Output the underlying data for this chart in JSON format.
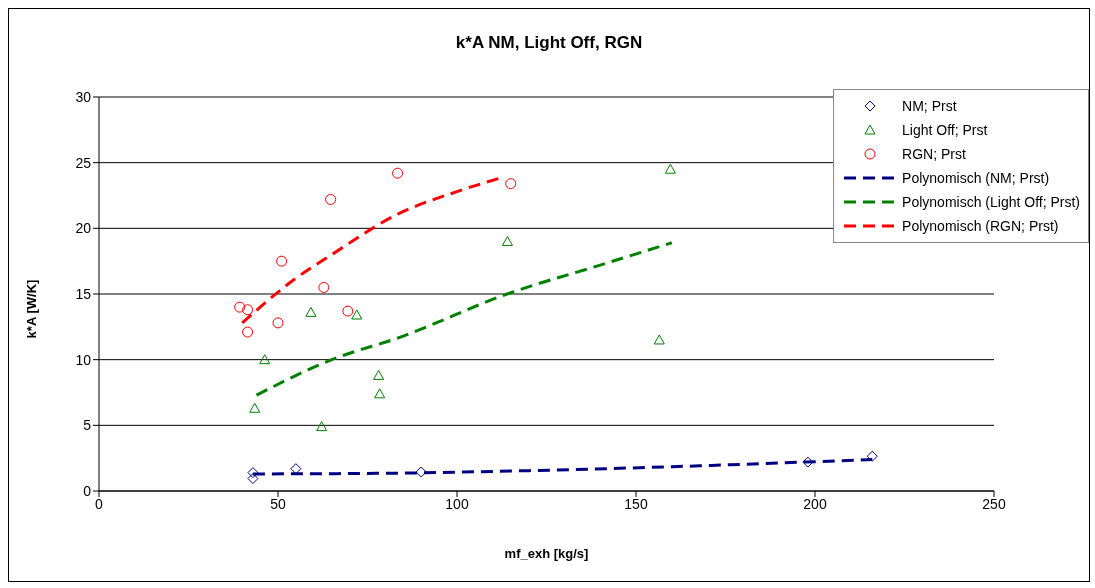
{
  "chart_data": {
    "type": "scatter",
    "title": "k*A NM, Light Off, RGN",
    "xlabel": "mf_exh [kg/s]",
    "ylabel": "k*A [W/K]",
    "xlim": [
      0,
      250
    ],
    "xticks": [
      0,
      50,
      100,
      150,
      200,
      250
    ],
    "ylim": [
      0,
      30
    ],
    "yticks": [
      0,
      5,
      10,
      15,
      20,
      25,
      30
    ],
    "grid": "y",
    "legend": "top right",
    "series": [
      {
        "name": "NM; Prst",
        "marker": "diamond",
        "color": "#000080",
        "x": [
          43,
          43,
          55,
          90,
          198,
          216
        ],
        "values": [
          1.4,
          0.95,
          1.7,
          1.45,
          2.2,
          2.65
        ]
      },
      {
        "name": "Light Off; Prst",
        "marker": "triangle",
        "color": "#008000",
        "x": [
          43.5,
          46.3,
          59.2,
          72,
          62.2,
          78.1,
          78.4,
          114.1,
          156.5,
          159.6
        ],
        "values": [
          6.3,
          10,
          13.6,
          13.4,
          4.9,
          8.8,
          7.4,
          19,
          11.5,
          24.5
        ]
      },
      {
        "name": "RGN; Prst",
        "marker": "circle",
        "color": "#ff0000",
        "x": [
          39.3,
          41.5,
          41.5,
          51,
          50,
          62.8,
          69.5,
          64.7,
          83.4,
          115
        ],
        "values": [
          14,
          13.8,
          12.1,
          17.5,
          12.8,
          15.5,
          13.7,
          22.2,
          24.2,
          23.4
        ]
      },
      {
        "name": "Polynomisch (NM; Prst)",
        "type": "line",
        "line_style": "dashed",
        "marker": "none",
        "color": "#000080",
        "x": [
          43,
          80,
          120,
          160,
          216
        ],
        "values": [
          1.3,
          1.35,
          1.55,
          1.85,
          2.4
        ]
      },
      {
        "name": "Polynomisch (Light Off; Prst)",
        "type": "line",
        "line_style": "dashed",
        "marker": "none",
        "color": "#008000",
        "x": [
          44,
          65,
          84,
          114,
          140,
          160
        ],
        "values": [
          7.3,
          10,
          11.7,
          15,
          17.2,
          18.9
        ]
      },
      {
        "name": "Polynomisch (RGN; Prst)",
        "type": "line",
        "line_style": "dashed",
        "marker": "none",
        "color": "#ff0000",
        "x": [
          40,
          54.5,
          65,
          83.6,
          100,
          113
        ],
        "values": [
          12.8,
          16.1,
          18,
          21.1,
          22.8,
          23.9
        ]
      }
    ]
  }
}
